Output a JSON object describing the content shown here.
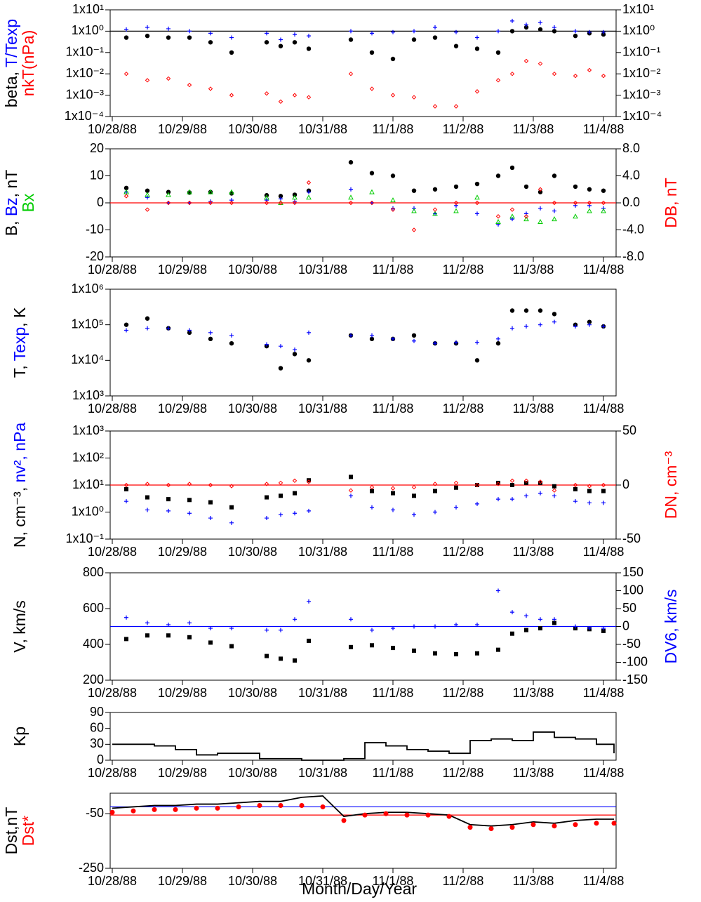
{
  "x_axis": {
    "label": "Month/Day/Year",
    "xlim": [
      -0.03,
      7.18
    ],
    "xticks": [
      {
        "value": 0,
        "label": "10/28/88"
      },
      {
        "value": 1,
        "label": "10/29/88"
      },
      {
        "value": 2,
        "label": "10/30/88"
      },
      {
        "value": 3,
        "label": "10/31/88"
      },
      {
        "value": 4,
        "label": "11/1/88"
      },
      {
        "value": 5,
        "label": "11/2/88"
      },
      {
        "value": 6,
        "label": "11/3/88"
      },
      {
        "value": 7,
        "label": "11/4/88"
      }
    ]
  },
  "chart_data": [
    {
      "type": "scatter",
      "log": true,
      "mirror": true,
      "ylabel": [
        [
          {
            "text": "beta, ",
            "color": "#000000"
          },
          {
            "text": "T/Texp",
            "color": "#0000ff"
          }
        ],
        [
          {
            "text": "nkT(nPa)",
            "color": "#ff0000"
          }
        ]
      ],
      "ylim": [
        0.0001,
        10
      ],
      "yticks": [
        {
          "value": 0.0001,
          "label": "1x10⁻⁴"
        },
        {
          "value": 0.001,
          "label": "1x10⁻³"
        },
        {
          "value": 0.01,
          "label": "1x10⁻²"
        },
        {
          "value": 0.1,
          "label": "1x10⁻¹"
        },
        {
          "value": 1,
          "label": "1x10⁰"
        },
        {
          "value": 10,
          "label": "1x10¹"
        }
      ],
      "hlines": [
        {
          "value": 1,
          "color": "#000000"
        }
      ],
      "x": [
        0.2,
        0.5,
        0.8,
        1.1,
        1.4,
        1.7,
        2.2,
        2.4,
        2.6,
        2.8,
        3.4,
        3.7,
        4.0,
        4.3,
        4.6,
        4.9,
        5.2,
        5.5,
        5.7,
        5.9,
        6.1,
        6.3,
        6.6,
        6.8,
        7.0
      ],
      "series": [
        {
          "marker": "dot",
          "color": "#000000",
          "values": [
            0.5,
            0.6,
            0.5,
            0.5,
            0.3,
            0.1,
            0.3,
            0.2,
            0.3,
            0.15,
            0.4,
            0.1,
            0.05,
            0.4,
            0.5,
            0.2,
            0.15,
            0.1,
            1.0,
            1.5,
            1.2,
            1.0,
            0.6,
            0.8,
            0.7
          ]
        },
        {
          "marker": "plus",
          "color": "#0000ff",
          "values": [
            1.2,
            1.5,
            1.3,
            1.0,
            0.8,
            0.5,
            0.8,
            0.4,
            0.7,
            0.6,
            1.0,
            0.8,
            0.9,
            1.0,
            1.5,
            0.9,
            0.5,
            1.0,
            3.0,
            2.0,
            2.5,
            1.5,
            1.0,
            0.9,
            0.9
          ]
        },
        {
          "marker": "diamond",
          "color": "#ff0000",
          "values": [
            0.01,
            0.005,
            0.006,
            0.003,
            0.002,
            0.001,
            0.0012,
            0.0005,
            0.001,
            0.0008,
            0.01,
            0.002,
            0.001,
            0.0008,
            0.0003,
            0.0003,
            0.0015,
            0.005,
            0.01,
            0.04,
            0.03,
            0.01,
            0.008,
            0.015,
            0.008
          ]
        }
      ]
    },
    {
      "type": "scatter",
      "ylabel": [
        [
          {
            "text": "B, ",
            "color": "#000000"
          },
          {
            "text": "Bz",
            "color": "#0000ff"
          },
          {
            "text": ", nT",
            "color": "#000000"
          }
        ],
        [
          {
            "text": "Bx",
            "color": "#00cc00"
          }
        ]
      ],
      "y2label": [
        [
          {
            "text": "DB, nT",
            "color": "#ff0000"
          }
        ]
      ],
      "ylim": [
        -20,
        20
      ],
      "yticks": [
        -20,
        -10,
        0,
        10,
        20
      ],
      "y2lim": [
        -8,
        8
      ],
      "y2ticks": [
        {
          "value": -8,
          "label": "-8.0"
        },
        {
          "value": -4,
          "label": "-4.0"
        },
        {
          "value": 0,
          "label": "0.0"
        },
        {
          "value": 4,
          "label": "4.0"
        },
        {
          "value": 8,
          "label": "8.0"
        }
      ],
      "hlines": [
        {
          "value": 0,
          "color": "#ff0000"
        }
      ],
      "x": [
        0.2,
        0.5,
        0.8,
        1.1,
        1.4,
        1.7,
        2.2,
        2.4,
        2.6,
        2.8,
        3.4,
        3.7,
        4.0,
        4.3,
        4.6,
        4.9,
        5.2,
        5.5,
        5.7,
        5.9,
        6.1,
        6.3,
        6.6,
        6.8,
        7.0
      ],
      "series": [
        {
          "marker": "dot",
          "color": "#000000",
          "values": [
            5.5,
            4.5,
            4,
            3.8,
            4,
            3.5,
            2.8,
            2.5,
            3,
            4.5,
            15,
            11,
            10,
            4.5,
            5,
            6,
            7,
            10,
            13,
            6,
            4,
            10,
            6,
            5,
            4.5
          ]
        },
        {
          "marker": "plus",
          "color": "#0000ff",
          "values": [
            4,
            2,
            0,
            0,
            0.5,
            1,
            1,
            1.5,
            0.5,
            4,
            5,
            0,
            -2,
            -2,
            -4,
            -1,
            -4,
            -8,
            -6,
            -4,
            -2,
            -3,
            -1,
            -1,
            -2
          ]
        },
        {
          "marker": "triangle",
          "color": "#00cc00",
          "values": [
            4,
            3,
            3,
            4,
            4,
            4,
            2,
            0,
            2,
            2,
            2,
            4,
            1,
            -3,
            -4,
            -3,
            2,
            -7,
            -5,
            -6,
            -7,
            -6,
            -5,
            -3,
            -3
          ]
        },
        {
          "marker": "diamond",
          "color": "#ff0000",
          "axis": "y2",
          "values": [
            1,
            -1,
            0,
            0,
            0,
            0,
            0,
            0,
            0,
            3,
            0,
            0,
            -1,
            -4,
            -1,
            0,
            0,
            -2,
            -1,
            -2,
            2,
            0,
            0,
            0,
            0
          ]
        }
      ]
    },
    {
      "type": "scatter",
      "log": true,
      "ylabel": [
        [
          {
            "text": "T, ",
            "color": "#000000"
          },
          {
            "text": "Texp",
            "color": "#0000ff"
          },
          {
            "text": ", K",
            "color": "#000000"
          }
        ]
      ],
      "ylim": [
        1000,
        1000000
      ],
      "yticks": [
        {
          "value": 1000,
          "label": "1x10³"
        },
        {
          "value": 10000,
          "label": "1x10⁴"
        },
        {
          "value": 100000,
          "label": "1x10⁵"
        },
        {
          "value": 1000000,
          "label": "1x10⁶"
        }
      ],
      "x": [
        0.2,
        0.5,
        0.8,
        1.1,
        1.4,
        1.7,
        2.2,
        2.4,
        2.6,
        2.8,
        3.4,
        3.7,
        4.0,
        4.3,
        4.6,
        4.9,
        5.2,
        5.5,
        5.7,
        5.9,
        6.1,
        6.3,
        6.6,
        6.8,
        7.0
      ],
      "series": [
        {
          "marker": "dot",
          "color": "#000000",
          "values": [
            100000,
            150000,
            80000,
            60000,
            40000,
            30000,
            25000,
            6000,
            15000,
            10000,
            50000,
            40000,
            40000,
            50000,
            30000,
            30000,
            10000,
            30000,
            250000,
            250000,
            250000,
            200000,
            100000,
            120000,
            90000
          ]
        },
        {
          "marker": "plus",
          "color": "#0000ff",
          "values": [
            70000,
            80000,
            80000,
            70000,
            60000,
            50000,
            28000,
            25000,
            20000,
            60000,
            50000,
            50000,
            40000,
            35000,
            30000,
            32000,
            32000,
            40000,
            80000,
            90000,
            100000,
            120000,
            90000,
            100000,
            90000
          ]
        }
      ]
    },
    {
      "type": "scatter",
      "log": true,
      "ylabel": [
        [
          {
            "text": "N, cm⁻³, ",
            "color": "#000000"
          },
          {
            "text": "nv², nPa",
            "color": "#0000ff"
          }
        ]
      ],
      "y2label": [
        [
          {
            "text": "DN, cm⁻³",
            "color": "#ff0000"
          }
        ]
      ],
      "ylim": [
        0.1,
        1000
      ],
      "yticks": [
        {
          "value": 0.1,
          "label": "1x10⁻¹"
        },
        {
          "value": 1,
          "label": "1x10⁰"
        },
        {
          "value": 10,
          "label": "1x10¹"
        },
        {
          "value": 100,
          "label": "1x10²"
        },
        {
          "value": 1000,
          "label": "1x10³"
        }
      ],
      "y2lim": [
        -50,
        50
      ],
      "y2ticks": [
        -50,
        0,
        50
      ],
      "hlines": [
        {
          "value": 0,
          "color": "#ff0000",
          "axis": "y2"
        }
      ],
      "x": [
        0.2,
        0.5,
        0.8,
        1.1,
        1.4,
        1.7,
        2.2,
        2.4,
        2.6,
        2.8,
        3.4,
        3.7,
        4.0,
        4.3,
        4.6,
        4.9,
        5.2,
        5.5,
        5.7,
        5.9,
        6.1,
        6.3,
        6.6,
        6.8,
        7.0
      ],
      "series": [
        {
          "marker": "square",
          "color": "#000000",
          "values": [
            7,
            3.5,
            3,
            2.8,
            2.3,
            1.5,
            3.5,
            4,
            5,
            15,
            20,
            6,
            5,
            4,
            6,
            8,
            10,
            12,
            10,
            12,
            12,
            9,
            7,
            6,
            6
          ]
        },
        {
          "marker": "plus",
          "color": "#0000ff",
          "values": [
            2.5,
            1.2,
            1.1,
            0.9,
            0.6,
            0.4,
            0.6,
            0.8,
            0.9,
            1.1,
            4,
            1.5,
            1.2,
            0.8,
            1.0,
            1.5,
            2,
            3,
            3,
            4,
            5,
            4,
            2.5,
            2.2,
            2.2
          ]
        },
        {
          "marker": "diamond",
          "color": "#ff0000",
          "axis": "y2",
          "values": [
            0,
            1,
            0,
            1,
            0,
            -1,
            1,
            2,
            4,
            3,
            -5,
            -2,
            -3,
            -2,
            1,
            2,
            0,
            1,
            4,
            4,
            3,
            -5,
            0,
            -1,
            0
          ]
        }
      ]
    },
    {
      "type": "scatter",
      "ylabel": [
        [
          {
            "text": "V, km/s",
            "color": "#000000"
          }
        ]
      ],
      "y2label": [
        [
          {
            "text": "DV6, km/s",
            "color": "#0000ff"
          }
        ]
      ],
      "ylim": [
        200,
        800
      ],
      "yticks": [
        200,
        400,
        600,
        800
      ],
      "y2lim": [
        -150,
        150
      ],
      "y2ticks": [
        -150,
        -100,
        -50,
        0,
        50,
        100,
        150
      ],
      "hlines": [
        {
          "value": 0,
          "color": "#0000ff",
          "axis": "y2"
        }
      ],
      "x": [
        0.2,
        0.5,
        0.8,
        1.1,
        1.4,
        1.7,
        2.2,
        2.4,
        2.6,
        2.8,
        3.4,
        3.7,
        4.0,
        4.3,
        4.6,
        4.9,
        5.2,
        5.5,
        5.7,
        5.9,
        6.1,
        6.3,
        6.6,
        6.8,
        7.0
      ],
      "series": [
        {
          "marker": "square",
          "color": "#000000",
          "values": [
            430,
            450,
            450,
            440,
            410,
            390,
            335,
            320,
            310,
            420,
            385,
            395,
            380,
            365,
            350,
            345,
            350,
            370,
            460,
            480,
            490,
            520,
            490,
            485,
            475
          ]
        },
        {
          "marker": "plus",
          "color": "#0000ff",
          "axis": "y2",
          "values": [
            25,
            10,
            5,
            10,
            -5,
            -5,
            -10,
            -10,
            20,
            70,
            20,
            -10,
            -5,
            0,
            0,
            5,
            5,
            100,
            40,
            30,
            20,
            20,
            0,
            -5,
            -5
          ]
        }
      ]
    },
    {
      "type": "line",
      "ylabel": [
        [
          {
            "text": "Kp",
            "color": "#000000"
          }
        ]
      ],
      "ylim": [
        0,
        90
      ],
      "yticks": [
        0,
        30,
        60,
        90
      ],
      "x": [
        0,
        0.3,
        0.6,
        0.9,
        1.2,
        1.5,
        1.8,
        2.1,
        2.4,
        2.7,
        3.0,
        3.3,
        3.6,
        3.9,
        4.2,
        4.5,
        4.8,
        5.1,
        5.4,
        5.7,
        6.0,
        6.3,
        6.6,
        6.9,
        7.15
      ],
      "series": [
        {
          "marker": "step",
          "color": "#000000",
          "values": [
            30,
            30,
            27,
            20,
            10,
            13,
            13,
            3,
            3,
            0,
            0,
            3,
            33,
            27,
            20,
            17,
            13,
            37,
            40,
            37,
            53,
            43,
            40,
            30,
            13
          ]
        }
      ]
    },
    {
      "type": "line",
      "ylabel": [
        [
          {
            "text": "Dst,nT",
            "color": "#000000"
          }
        ],
        [
          {
            "text": "Dst*",
            "color": "#ff0000"
          }
        ]
      ],
      "ylim": [
        -250,
        25
      ],
      "yticks": [
        -50,
        -250
      ],
      "hlines": [
        {
          "value": -25,
          "color": "#0000ff"
        },
        {
          "value": -55,
          "color": "#ff0000"
        }
      ],
      "x": [
        0,
        0.3,
        0.6,
        0.9,
        1.2,
        1.5,
        1.8,
        2.1,
        2.4,
        2.7,
        3.0,
        3.3,
        3.6,
        3.9,
        4.2,
        4.5,
        4.8,
        5.1,
        5.4,
        5.7,
        6.0,
        6.3,
        6.6,
        6.9,
        7.15
      ],
      "series": [
        {
          "marker": "line",
          "color": "#000000",
          "values": [
            -30,
            -25,
            -20,
            -20,
            -15,
            -15,
            -10,
            -5,
            -5,
            10,
            15,
            -60,
            -50,
            -45,
            -45,
            -50,
            -55,
            -90,
            -95,
            -90,
            -80,
            -85,
            -75,
            -70,
            -70
          ]
        },
        {
          "marker": "reddot",
          "color": "#ff0000",
          "values": [
            -45,
            -40,
            -35,
            -35,
            -30,
            -30,
            -25,
            -20,
            -20,
            -20,
            -25,
            -75,
            -55,
            -50,
            -55,
            -55,
            -60,
            -100,
            -105,
            -100,
            -90,
            -95,
            -90,
            -85,
            -85
          ]
        }
      ]
    }
  ]
}
